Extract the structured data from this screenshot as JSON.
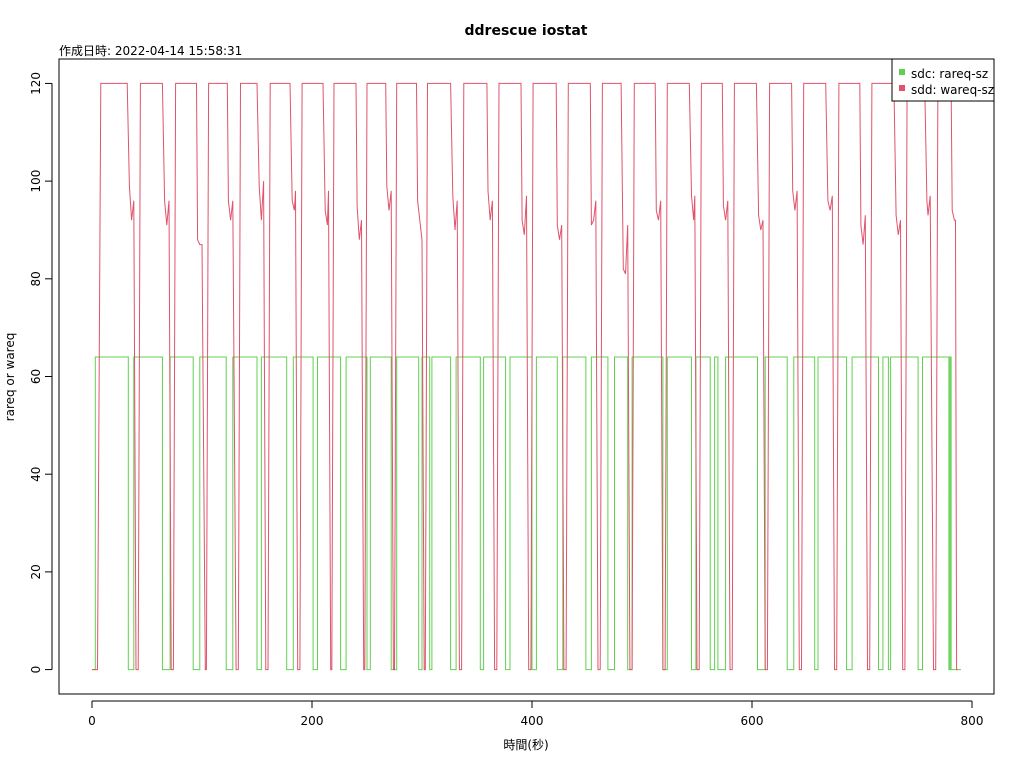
{
  "chart_data": {
    "type": "line",
    "title": "ddrescue iostat",
    "subtitle": "作成日時: 2022-04-14 15:58:31",
    "xlabel": "時間(秒)",
    "ylabel": "rareq or wareq",
    "xlim": [
      -30,
      820
    ],
    "ylim": [
      -5,
      125
    ],
    "xticks": [
      0,
      200,
      400,
      600,
      800
    ],
    "yticks": [
      0,
      20,
      40,
      60,
      80,
      100,
      120
    ],
    "grid": false,
    "legend_position": "top-right",
    "series": [
      {
        "name": "sdc: rareq-sz",
        "color": "#61D04F",
        "on_intervals": [
          [
            3,
            33
          ],
          [
            38,
            64
          ],
          [
            71,
            92
          ],
          [
            98,
            122
          ],
          [
            128,
            150
          ],
          [
            154,
            177
          ],
          [
            183,
            201
          ],
          [
            205,
            226
          ],
          [
            231,
            250
          ],
          [
            253,
            272
          ],
          [
            277,
            297
          ],
          [
            300,
            307
          ],
          [
            309,
            326
          ],
          [
            331,
            353
          ],
          [
            356,
            376
          ],
          [
            380,
            400
          ],
          [
            404,
            423
          ],
          [
            428,
            449
          ],
          [
            454,
            469
          ],
          [
            475,
            487
          ],
          [
            491,
            519
          ],
          [
            523,
            545
          ],
          [
            549,
            562
          ],
          [
            566,
            569
          ],
          [
            576,
            605
          ],
          [
            612,
            632
          ],
          [
            638,
            657
          ],
          [
            660,
            686
          ],
          [
            691,
            715
          ],
          [
            719,
            724
          ],
          [
            726,
            751
          ],
          [
            755,
            779
          ],
          [
            780,
            781
          ]
        ],
        "on_value": 64,
        "off_value": 0,
        "x_end": 790
      },
      {
        "name": "sdd: wareq-sz",
        "color": "#DF536B",
        "intervals": [
          {
            "start": 5,
            "end": 40,
            "rise": 3,
            "tail_start": 32,
            "tail": [
              [
                34,
                99
              ],
              [
                36,
                92
              ],
              [
                38,
                96
              ]
            ]
          },
          {
            "start": 42,
            "end": 72,
            "rise": 2,
            "tail_start": 64,
            "tail": [
              [
                66,
                96
              ],
              [
                68,
                91
              ],
              [
                70,
                96
              ]
            ]
          },
          {
            "start": 74,
            "end": 103,
            "rise": 2,
            "tail_start": 95,
            "tail": [
              [
                96,
                88
              ],
              [
                98,
                87
              ],
              [
                100,
                87
              ]
            ]
          },
          {
            "start": 104,
            "end": 131,
            "rise": 2,
            "tail_start": 123,
            "tail": [
              [
                124,
                96
              ],
              [
                126,
                92
              ],
              [
                128,
                96
              ]
            ]
          },
          {
            "start": 133,
            "end": 158,
            "rise": 2,
            "tail_start": 150,
            "tail": [
              [
                152,
                99
              ],
              [
                154,
                92
              ],
              [
                156,
                100
              ]
            ]
          },
          {
            "start": 160,
            "end": 187,
            "rise": 2,
            "tail_start": 180,
            "tail": [
              [
                182,
                96
              ],
              [
                184,
                94
              ],
              [
                185,
                98
              ]
            ]
          },
          {
            "start": 189,
            "end": 217,
            "rise": 2,
            "tail_start": 210,
            "tail": [
              [
                212,
                94
              ],
              [
                214,
                91
              ],
              [
                215,
                98
              ]
            ]
          },
          {
            "start": 218,
            "end": 247,
            "rise": 2,
            "tail_start": 240,
            "tail": [
              [
                241,
                95
              ],
              [
                243,
                88
              ],
              [
                245,
                92
              ]
            ]
          },
          {
            "start": 248,
            "end": 274,
            "rise": 2,
            "tail_start": 267,
            "tail": [
              [
                268,
                99
              ],
              [
                270,
                94
              ],
              [
                272,
                98
              ]
            ]
          },
          {
            "start": 275,
            "end": 302,
            "rise": 2,
            "tail_start": 295,
            "tail": [
              [
                296,
                96
              ],
              [
                298,
                92
              ],
              [
                300,
                88
              ]
            ]
          },
          {
            "start": 303,
            "end": 334,
            "rise": 2,
            "tail_start": 326,
            "tail": [
              [
                328,
                97
              ],
              [
                330,
                90
              ],
              [
                332,
                96
              ]
            ]
          },
          {
            "start": 336,
            "end": 366,
            "rise": 2,
            "tail_start": 359,
            "tail": [
              [
                360,
                98
              ],
              [
                362,
                92
              ],
              [
                364,
                96
              ]
            ]
          },
          {
            "start": 368,
            "end": 397,
            "rise": 2,
            "tail_start": 390,
            "tail": [
              [
                391,
                92
              ],
              [
                393,
                89
              ],
              [
                395,
                97
              ]
            ]
          },
          {
            "start": 399,
            "end": 429,
            "rise": 2,
            "tail_start": 422,
            "tail": [
              [
                423,
                91
              ],
              [
                425,
                88
              ],
              [
                427,
                91
              ]
            ]
          },
          {
            "start": 431,
            "end": 460,
            "rise": 2,
            "tail_start": 453,
            "tail": [
              [
                454,
                91
              ],
              [
                456,
                92
              ],
              [
                458,
                96
              ]
            ]
          },
          {
            "start": 462,
            "end": 489,
            "rise": 2,
            "tail_start": 481,
            "tail": [
              [
                483,
                82
              ],
              [
                485,
                81
              ],
              [
                487,
                91
              ]
            ]
          },
          {
            "start": 491,
            "end": 519,
            "rise": 2,
            "tail_start": 512,
            "tail": [
              [
                513,
                94
              ],
              [
                515,
                92
              ],
              [
                517,
                96
              ]
            ]
          },
          {
            "start": 521,
            "end": 550,
            "rise": 2,
            "tail_start": 543,
            "tail": [
              [
                545,
                97
              ],
              [
                547,
                92
              ],
              [
                548,
                97
              ]
            ]
          },
          {
            "start": 552,
            "end": 580,
            "rise": 2,
            "tail_start": 573,
            "tail": [
              [
                574,
                95
              ],
              [
                576,
                92
              ],
              [
                578,
                96
              ]
            ]
          },
          {
            "start": 582,
            "end": 612,
            "rise": 2,
            "tail_start": 604,
            "tail": [
              [
                606,
                93
              ],
              [
                608,
                90
              ],
              [
                610,
                92
              ]
            ]
          },
          {
            "start": 614,
            "end": 643,
            "rise": 2,
            "tail_start": 636,
            "tail": [
              [
                637,
                98
              ],
              [
                639,
                94
              ],
              [
                641,
                98
              ]
            ]
          },
          {
            "start": 645,
            "end": 675,
            "rise": 2,
            "tail_start": 667,
            "tail": [
              [
                669,
                96
              ],
              [
                671,
                94
              ],
              [
                673,
                97
              ]
            ]
          },
          {
            "start": 677,
            "end": 705,
            "rise": 2,
            "tail_start": 698,
            "tail": [
              [
                699,
                91
              ],
              [
                701,
                87
              ],
              [
                703,
                93
              ]
            ]
          },
          {
            "start": 707,
            "end": 737,
            "rise": 2,
            "tail_start": 729,
            "tail": [
              [
                731,
                93
              ],
              [
                733,
                89
              ],
              [
                735,
                92
              ]
            ]
          },
          {
            "start": 739,
            "end": 765,
            "rise": 2,
            "tail_start": 757,
            "tail": [
              [
                759,
                96
              ],
              [
                760,
                93
              ],
              [
                762,
                97
              ]
            ]
          },
          {
            "start": 767,
            "end": 786,
            "rise": 2,
            "tail_start": 781,
            "tail": [
              [
                782,
                94
              ],
              [
                784,
                92
              ],
              [
                785,
                92
              ]
            ]
          }
        ],
        "plateau": 120,
        "off_value": 0,
        "x_start": 0,
        "x_end": 787
      }
    ]
  }
}
